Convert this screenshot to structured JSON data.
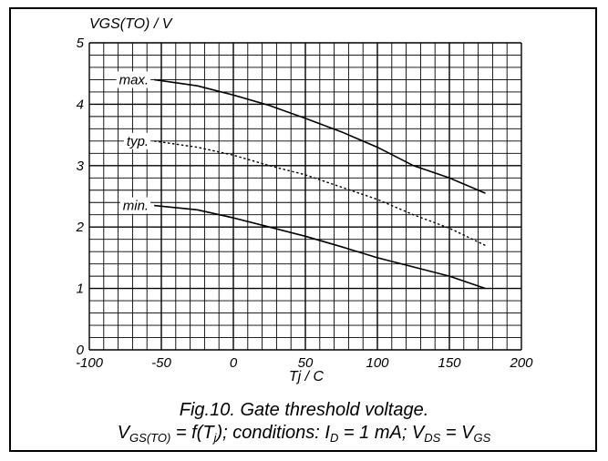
{
  "chart_data": {
    "type": "line",
    "ylabel": "VGS(TO) / V",
    "xlabel": "Tj / C",
    "xlim": [
      -100,
      200
    ],
    "ylim": [
      0,
      5
    ],
    "xticks": [
      "-100",
      "-50",
      "0",
      "50",
      "100",
      "150",
      "200"
    ],
    "yticks": [
      "0",
      "1",
      "2",
      "3",
      "4",
      "5"
    ],
    "grid": true,
    "series": [
      {
        "name": "max.",
        "style": "solid",
        "x": [
          -55,
          -25,
          0,
          25,
          50,
          75,
          100,
          125,
          150,
          175
        ],
        "y": [
          4.4,
          4.3,
          4.15,
          3.98,
          3.77,
          3.55,
          3.3,
          3.0,
          2.8,
          2.55
        ]
      },
      {
        "name": "typ.",
        "style": "dotted",
        "x": [
          -55,
          -25,
          0,
          25,
          50,
          75,
          100,
          125,
          150,
          175
        ],
        "y": [
          3.4,
          3.3,
          3.17,
          3.0,
          2.85,
          2.65,
          2.45,
          2.2,
          1.98,
          1.7
        ]
      },
      {
        "name": "min.",
        "style": "solid",
        "x": [
          -55,
          -25,
          0,
          25,
          50,
          75,
          100,
          125,
          150,
          175
        ],
        "y": [
          2.35,
          2.28,
          2.15,
          2.0,
          1.85,
          1.68,
          1.5,
          1.35,
          1.2,
          1.0
        ]
      }
    ]
  },
  "caption": {
    "line1": "Fig.10.   Gate threshold voltage.",
    "l2_a": "V",
    "l2_a_sub": "GS(TO)",
    "l2_b": " = f(T",
    "l2_b_sub": "j",
    "l2_c": "); conditions: I",
    "l2_c_sub": "D",
    "l2_d": " = 1 mA; V",
    "l2_d_sub": "DS",
    "l2_e": " = V",
    "l2_e_sub": "GS"
  }
}
